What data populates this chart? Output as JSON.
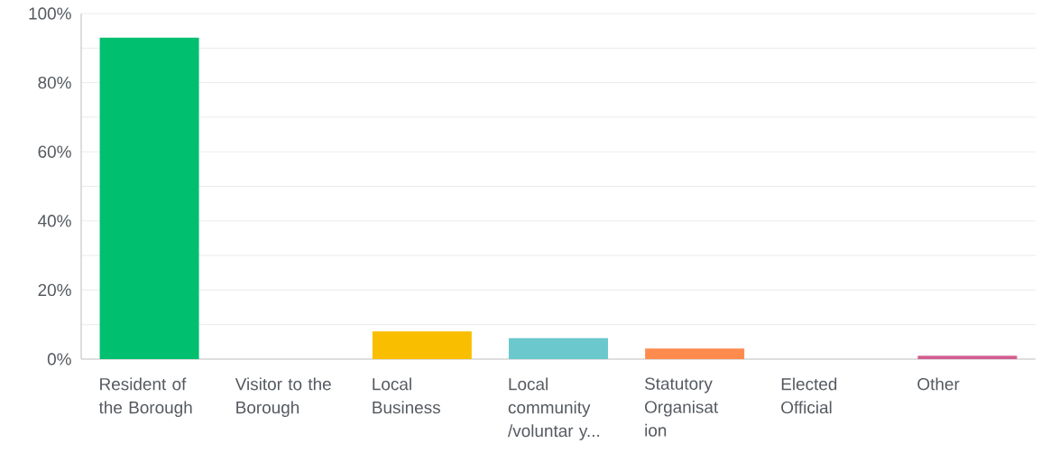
{
  "chart_data": {
    "type": "bar",
    "categories": [
      "Resident of the Borough",
      "Visitor to the Borough",
      "Local Business",
      "Local community /voluntar y...",
      "Statutory Organisat ion",
      "Elected Official",
      "Other"
    ],
    "values": [
      93,
      0,
      8,
      6.1,
      3.1,
      0,
      1
    ],
    "colors": [
      "#00bf6f",
      null,
      "#f9be00",
      "#6bc8cd",
      "#ff8b4f",
      null,
      "#d25f90"
    ],
    "ylim": [
      0,
      100
    ],
    "yticks": [
      {
        "value": 0,
        "label": "0%"
      },
      {
        "value": 10,
        "label": null
      },
      {
        "value": 20,
        "label": "20%"
      },
      {
        "value": 30,
        "label": null
      },
      {
        "value": 40,
        "label": "40%"
      },
      {
        "value": 50,
        "label": null
      },
      {
        "value": 60,
        "label": "60%"
      },
      {
        "value": 70,
        "label": null
      },
      {
        "value": 80,
        "label": "80%"
      },
      {
        "value": 90,
        "label": null
      },
      {
        "value": 100,
        "label": "100%"
      }
    ],
    "grid": "y"
  }
}
